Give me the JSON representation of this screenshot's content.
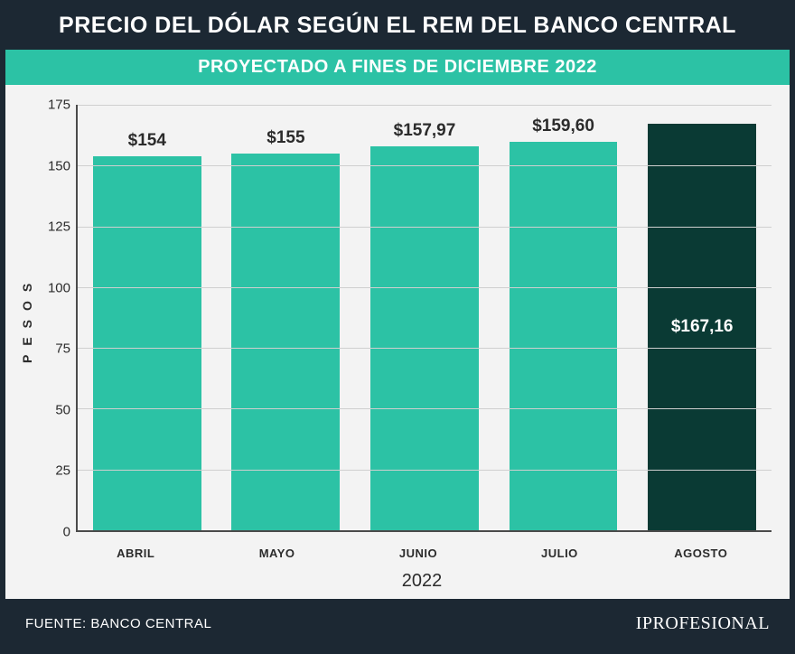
{
  "colors": {
    "frame": "#1c2833",
    "background": "#f3f3f3",
    "accent": "#2cc2a5",
    "bar_primary": "#2cc2a5",
    "bar_highlight": "#0a3a34",
    "grid": "#cfcfcf",
    "axis": "#4a4a4a",
    "text_dark": "#2b2b2b",
    "text_light": "#ffffff"
  },
  "header": {
    "title": "PRECIO DEL DÓLAR SEGÚN EL REM DEL BANCO CENTRAL",
    "title_fontsize": 25,
    "subtitle": "PROYECTADO A FINES DE DICIEMBRE 2022",
    "subtitle_fontsize": 20
  },
  "chart": {
    "type": "bar",
    "ylabel": "PESOS",
    "ylabel_fontsize": 14,
    "ylim_min": 0,
    "ylim_max": 175,
    "ytick_step": 25,
    "yticks": [
      0,
      25,
      50,
      75,
      100,
      125,
      150,
      175
    ],
    "ytick_fontsize": 15,
    "categories": [
      "ABRIL",
      "MAYO",
      "JUNIO",
      "JULIO",
      "AGOSTO"
    ],
    "xtick_fontsize": 13,
    "values": [
      154,
      155,
      157.97,
      159.6,
      167.16
    ],
    "value_labels": [
      "$154",
      "$155",
      "$157,97",
      "$159,60",
      "$167,16"
    ],
    "value_fontsize": 19,
    "bar_colors": [
      "#2cc2a5",
      "#2cc2a5",
      "#2cc2a5",
      "#2cc2a5",
      "#0a3a34"
    ],
    "label_positions": [
      "above",
      "above",
      "above",
      "above",
      "inside"
    ],
    "bar_width_pct": 78,
    "year_label": "2022",
    "year_fontsize": 20
  },
  "footer": {
    "source": "FUENTE: BANCO CENTRAL",
    "source_fontsize": 15,
    "brand_prefix": "I",
    "brand_main": "PROFESIONAL",
    "brand_fontsize": 20
  }
}
